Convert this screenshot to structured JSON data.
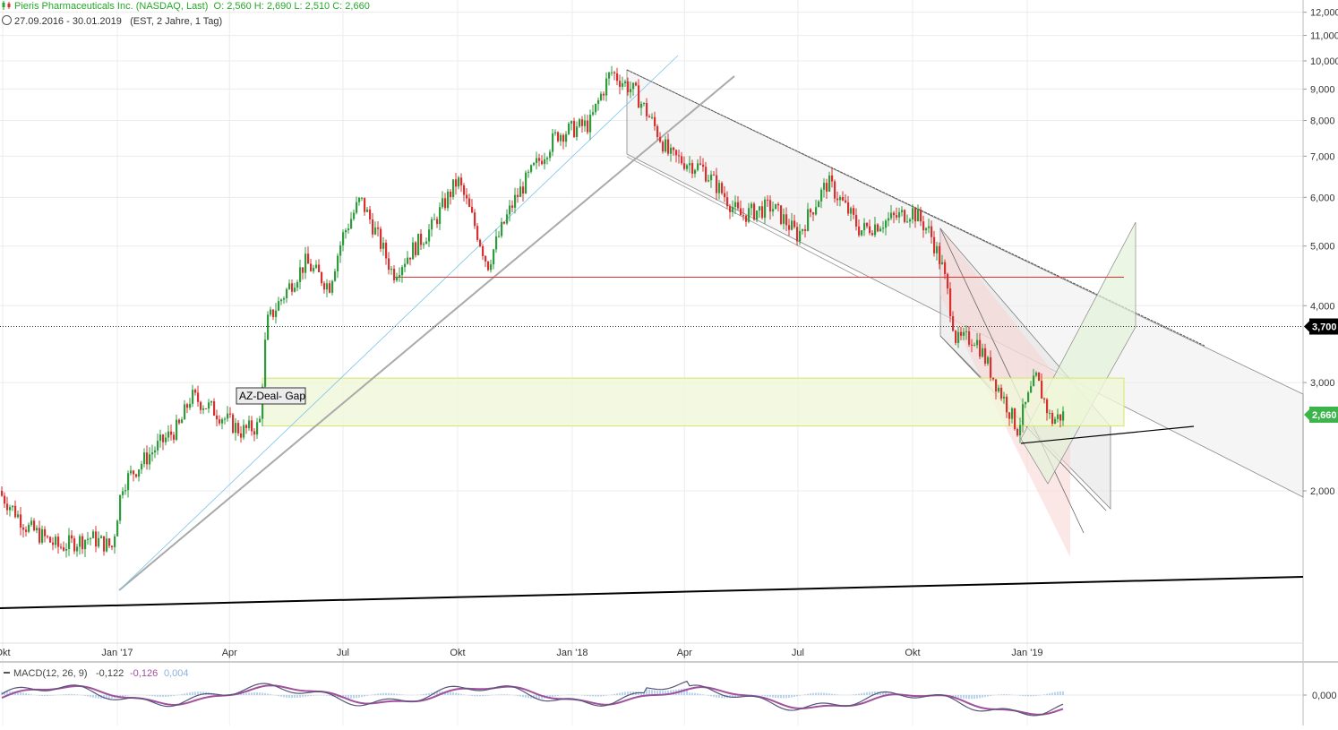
{
  "header": {
    "title": "Pieris Pharmaceuticals Inc. (NASDAQ, Last)",
    "ohlc": "O: 2,560  H: 2,690  L: 2,510  C: 2,660",
    "range": "27.09.2016 - 30.01.2019",
    "meta": "(EST, 2 Jahre, 1 Tag)"
  },
  "colors": {
    "up": "#2e9b3c",
    "down": "#d83030",
    "trend": "#000000",
    "support": "#e03030",
    "gap_fill": "#f0f8d8",
    "gap_border": "#d6e66a",
    "macd": "#555577",
    "signal": "#a0509c",
    "hist": "#9ec3e6"
  },
  "chart_data": {
    "type": "candlestick",
    "yscale": "log",
    "ylim": [
      1.5,
      12.0
    ],
    "y_ticks": [
      "12,000",
      "11,000",
      "10,000",
      "9,000",
      "8,000",
      "7,000",
      "6,000",
      "5,000",
      "4,000",
      "3,000",
      "2,000"
    ],
    "x_ticks": [
      "Okt",
      "Jan '17",
      "Apr",
      "Jul",
      "Okt",
      "Jan '18",
      "Apr",
      "Jul",
      "Okt",
      "Jan '19"
    ],
    "price_path": [
      [
        "2016-09-27",
        2.0
      ],
      [
        "2016-10-20",
        1.75
      ],
      [
        "2016-11-15",
        1.62
      ],
      [
        "2016-12-10",
        1.68
      ],
      [
        "2016-12-28",
        1.62
      ],
      [
        "2017-01-05",
        2.05
      ],
      [
        "2017-02-01",
        2.35
      ],
      [
        "2017-02-20",
        2.55
      ],
      [
        "2017-03-01",
        2.85
      ],
      [
        "2017-03-20",
        2.7
      ],
      [
        "2017-04-10",
        2.5
      ],
      [
        "2017-04-25",
        2.55
      ],
      [
        "2017-05-01",
        3.75
      ],
      [
        "2017-06-01",
        4.7
      ],
      [
        "2017-06-20",
        4.3
      ],
      [
        "2017-07-01",
        5.2
      ],
      [
        "2017-07-15",
        5.95
      ],
      [
        "2017-08-10",
        4.5
      ],
      [
        "2017-09-10",
        5.35
      ],
      [
        "2017-10-01",
        6.4
      ],
      [
        "2017-10-25",
        4.65
      ],
      [
        "2017-11-15",
        5.9
      ],
      [
        "2017-12-20",
        7.6
      ],
      [
        "2018-01-15",
        7.9
      ],
      [
        "2018-02-01",
        9.6
      ],
      [
        "2018-02-20",
        8.9
      ],
      [
        "2018-03-20",
        7.0
      ],
      [
        "2018-04-15",
        6.7
      ],
      [
        "2018-05-15",
        5.6
      ],
      [
        "2018-06-10",
        5.8
      ],
      [
        "2018-07-01",
        5.2
      ],
      [
        "2018-07-25",
        6.35
      ],
      [
        "2018-08-20",
        5.3
      ],
      [
        "2018-09-10",
        5.5
      ],
      [
        "2018-10-01",
        5.7
      ],
      [
        "2018-10-15",
        5.25
      ],
      [
        "2018-10-25",
        4.6
      ],
      [
        "2018-11-05",
        3.5
      ],
      [
        "2018-11-20",
        3.55
      ],
      [
        "2018-12-05",
        3.05
      ],
      [
        "2018-12-24",
        2.52
      ],
      [
        "2019-01-08",
        3.05
      ],
      [
        "2019-01-20",
        2.6
      ],
      [
        "2019-01-30",
        2.66
      ]
    ],
    "last_price": "3,700",
    "current_price": "2,660",
    "support_level": 4.45,
    "annotation": "AZ-Deal- Gap",
    "gap_zone": [
      2.55,
      3.05
    ],
    "indicator": {
      "name": "MACD(12, 26, 9)",
      "values": [
        "-0,122",
        "-0,126",
        "0,004"
      ],
      "zero_tick": "0,000"
    }
  }
}
